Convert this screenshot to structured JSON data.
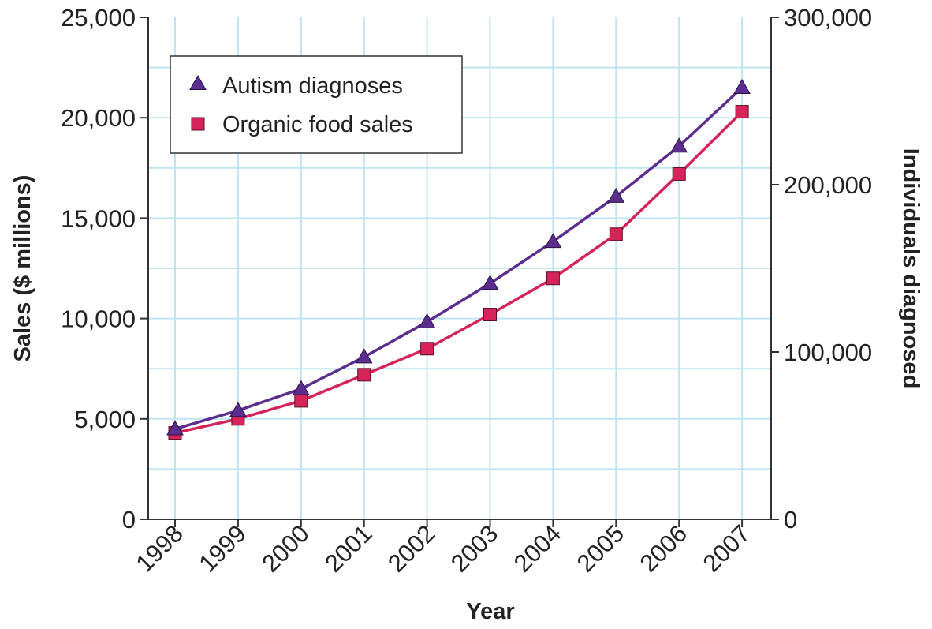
{
  "chart_data": {
    "type": "line",
    "title": "",
    "xlabel": "Year",
    "ylabel": "Sales ($ millions)",
    "y2label": "Individuals diagnosed",
    "categories": [
      "1998",
      "1999",
      "2000",
      "2001",
      "2002",
      "2003",
      "2004",
      "2005",
      "2006",
      "2007"
    ],
    "ylim": [
      0,
      25000
    ],
    "y2lim": [
      0,
      300000
    ],
    "yticks": [
      "0",
      "5,000",
      "10,000",
      "15,000",
      "20,000",
      "25,000"
    ],
    "y2ticks": [
      "0",
      "100,000",
      "200,000",
      "300,000"
    ],
    "grid": true,
    "legend_position": "top-left",
    "series": [
      {
        "name": "Autism diagnoses",
        "axis": "right",
        "marker": "triangle",
        "color": "#5b2d8e",
        "values": [
          54000,
          65000,
          78000,
          97000,
          118000,
          141000,
          166000,
          193000,
          223000,
          258000
        ]
      },
      {
        "name": "Organic food sales",
        "axis": "left",
        "marker": "square",
        "color": "#d6245a",
        "values": [
          4300,
          5000,
          5900,
          7200,
          8500,
          10200,
          12000,
          14200,
          17200,
          20300
        ]
      }
    ]
  },
  "colors": {
    "grid": "#bfe3f0",
    "axis": "#333333"
  }
}
